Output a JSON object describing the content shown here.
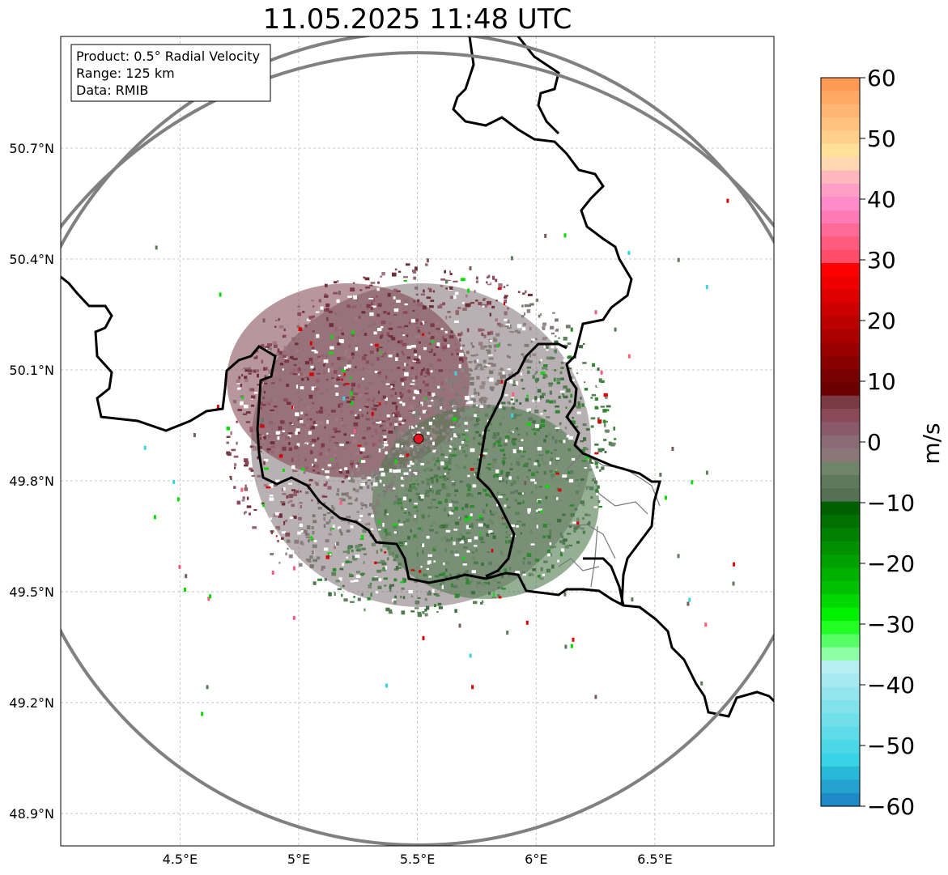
{
  "title": "11.05.2025 11:48 UTC",
  "info_box": {
    "product": "Product: 0.5° Radial Velocity",
    "range": "Range: 125 km",
    "data": "Data: RMIB"
  },
  "map": {
    "lon_range": [
      4.0,
      7.0
    ],
    "lat_range": [
      48.8,
      51.0
    ],
    "lon_ticks": [
      {
        "value": 4.5,
        "label": "4.5°E"
      },
      {
        "value": 5.0,
        "label": "5°E"
      },
      {
        "value": 5.5,
        "label": "5.5°E"
      },
      {
        "value": 6.0,
        "label": "6°E"
      },
      {
        "value": 6.5,
        "label": "6.5°E"
      }
    ],
    "lat_ticks": [
      {
        "value": 50.7,
        "label": "50.7°N"
      },
      {
        "value": 50.4,
        "label": "50.4°N"
      },
      {
        "value": 50.1,
        "label": "50.1°N"
      },
      {
        "value": 49.8,
        "label": "49.8°N"
      },
      {
        "value": 49.5,
        "label": "49.5°N"
      },
      {
        "value": 49.2,
        "label": "49.2°N"
      },
      {
        "value": 48.9,
        "label": "48.9°N"
      }
    ],
    "radar_site": {
      "lon": 5.505,
      "lat": 49.914
    },
    "range_ring_color": "#808080",
    "site_marker_color": "#e0141e"
  },
  "colorbar": {
    "unit": "m/s",
    "range": [
      -60,
      60
    ],
    "ticks": [
      {
        "value": 60,
        "label": "60"
      },
      {
        "value": 50,
        "label": "50"
      },
      {
        "value": 40,
        "label": "40"
      },
      {
        "value": 30,
        "label": "30"
      },
      {
        "value": 20,
        "label": "20"
      },
      {
        "value": 10,
        "label": "10"
      },
      {
        "value": 0,
        "label": "0"
      },
      {
        "value": -10,
        "label": "−10"
      },
      {
        "value": -20,
        "label": "−20"
      },
      {
        "value": -30,
        "label": "−30"
      },
      {
        "value": -40,
        "label": "−40"
      },
      {
        "value": -50,
        "label": "−50"
      },
      {
        "value": -60,
        "label": "−60"
      }
    ],
    "colors_top_to_bottom": [
      "#ff9a55",
      "#ffa765",
      "#ffb574",
      "#ffc27f",
      "#ffcf8b",
      "#ffe09a",
      "#ffd7b0",
      "#ffb7be",
      "#ff9fc6",
      "#ff8bcb",
      "#ff7bb6",
      "#ff6a97",
      "#ff5b7f",
      "#ff4c69",
      "#ff0000",
      "#ee0000",
      "#dd0000",
      "#cc0000",
      "#bb0000",
      "#aa0000",
      "#990000",
      "#880000",
      "#770000",
      "#6c0000",
      "#7a3a44",
      "#8a4a58",
      "#8a5a6a",
      "#8a6a74",
      "#8a7878",
      "#6f8468",
      "#5e7a5c",
      "#557055",
      "#006000",
      "#007000",
      "#008000",
      "#009000",
      "#00a000",
      "#00b000",
      "#00c000",
      "#00d800",
      "#00f000",
      "#22ff22",
      "#55ff66",
      "#8fffa6",
      "#b7eef2",
      "#a6eaf0",
      "#94e6ee",
      "#82e2ec",
      "#70dfea",
      "#5edbe8",
      "#4cd7e6",
      "#38d3e4",
      "#28b8d8",
      "#24a2d0",
      "#1f8bc6"
    ]
  }
}
